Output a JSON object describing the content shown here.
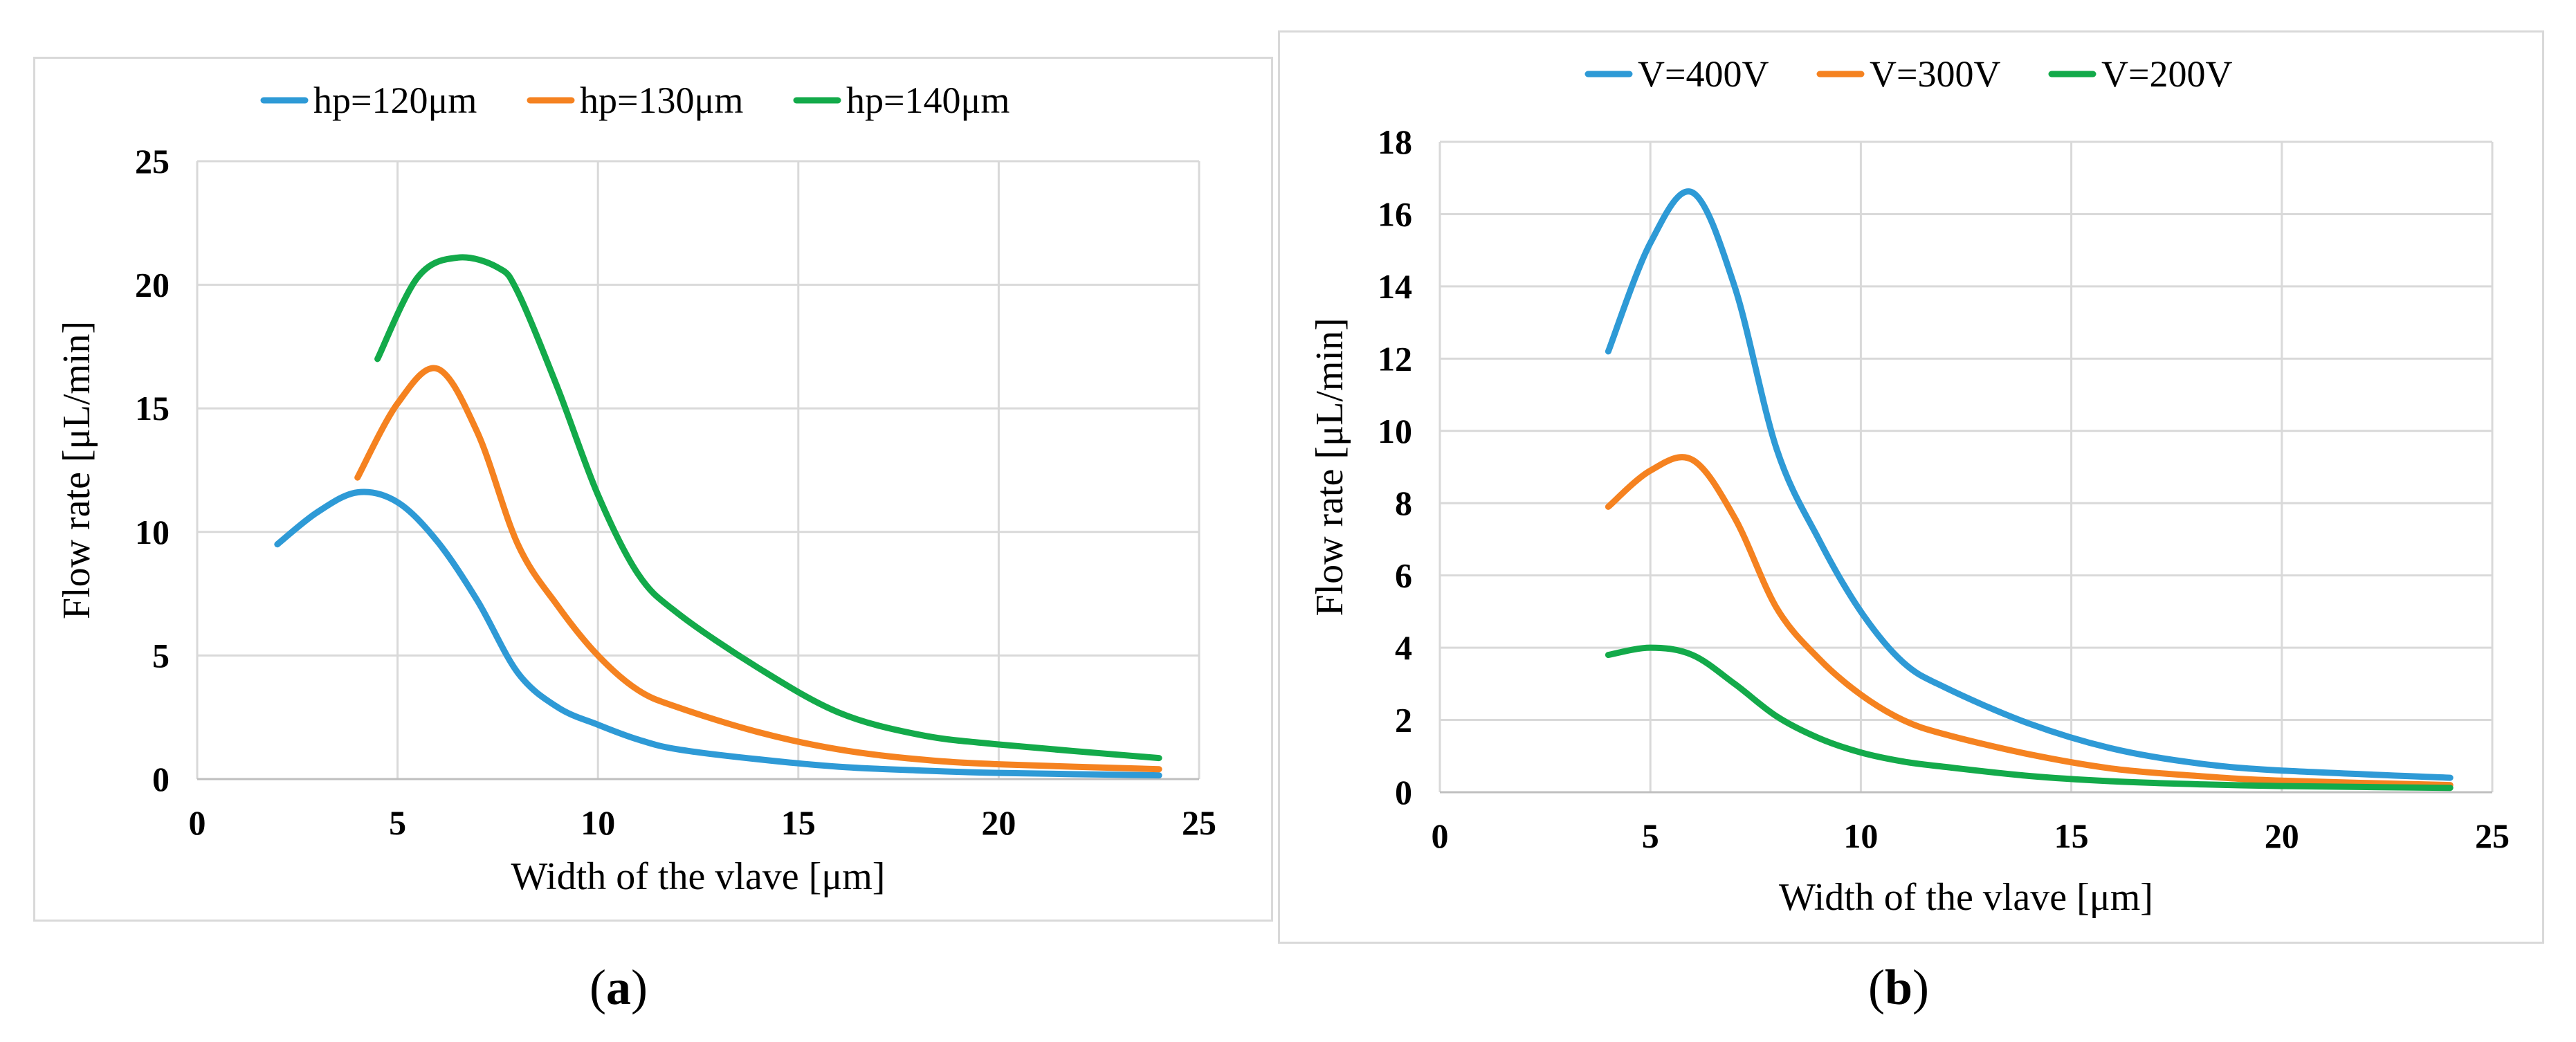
{
  "captions": {
    "a": {
      "open": "(",
      "letter": "a",
      "close": ")"
    },
    "b": {
      "open": "(",
      "letter": "b",
      "close": ")"
    }
  },
  "chart_data": [
    {
      "id": "a",
      "type": "line",
      "title": "",
      "xlabel": "Width of the vlave [μm]",
      "ylabel": "Flow rate [μL/min]",
      "xlim": [
        0,
        25
      ],
      "ylim": [
        0,
        25
      ],
      "xticks": [
        0,
        5,
        10,
        15,
        20,
        25
      ],
      "yticks": [
        0,
        5,
        10,
        15,
        20,
        25
      ],
      "grid": true,
      "legend_position": "top",
      "series": [
        {
          "name": "hp=120μm",
          "color": "#2e9ad6",
          "x": [
            2,
            3,
            4,
            5,
            6,
            7,
            8,
            9,
            10,
            11,
            12,
            14,
            16,
            18,
            20,
            24
          ],
          "y": [
            9.5,
            10.8,
            11.6,
            11.2,
            9.6,
            7.2,
            4.3,
            2.9,
            2.2,
            1.6,
            1.2,
            0.8,
            0.5,
            0.35,
            0.25,
            0.15
          ]
        },
        {
          "name": "hp=130μm",
          "color": "#f58220",
          "x": [
            4,
            5,
            6,
            7,
            8,
            9,
            10,
            11,
            12,
            14,
            16,
            18,
            20,
            24
          ],
          "y": [
            12.2,
            15.2,
            16.6,
            14,
            9.5,
            7,
            5,
            3.6,
            2.9,
            1.9,
            1.2,
            0.8,
            0.6,
            0.4
          ]
        },
        {
          "name": "hp=140μm",
          "color": "#13aa4a",
          "x": [
            4.5,
            5.5,
            6.5,
            7.5,
            8,
            9,
            10,
            11,
            12,
            14,
            16,
            18,
            20,
            24
          ],
          "y": [
            17,
            20.3,
            21.1,
            20.7,
            19.7,
            15.8,
            11.5,
            8.3,
            6.7,
            4.5,
            2.7,
            1.8,
            1.4,
            0.85
          ]
        }
      ]
    },
    {
      "id": "b",
      "type": "line",
      "title": "",
      "xlabel": "Width of the vlave [μm]",
      "ylabel": "Flow rate [μL/min]",
      "xlim": [
        0,
        25
      ],
      "ylim": [
        0,
        18
      ],
      "xticks": [
        0,
        5,
        10,
        15,
        20,
        25
      ],
      "yticks": [
        0,
        2,
        4,
        6,
        8,
        10,
        12,
        14,
        16,
        18
      ],
      "grid": true,
      "legend_position": "top",
      "series": [
        {
          "name": "V=400V",
          "color": "#2e9ad6",
          "x": [
            4,
            5,
            6,
            7,
            8,
            9,
            10,
            11,
            12,
            14,
            16,
            18,
            20,
            24
          ],
          "y": [
            12.2,
            15.2,
            16.6,
            14,
            9.5,
            7,
            5,
            3.6,
            2.9,
            1.9,
            1.2,
            0.8,
            0.6,
            0.4
          ]
        },
        {
          "name": "V=300V",
          "color": "#f58220",
          "x": [
            4,
            5,
            6,
            7,
            8,
            9,
            10,
            11,
            12,
            14,
            16,
            18,
            20,
            24
          ],
          "y": [
            7.9,
            8.9,
            9.2,
            7.6,
            5.1,
            3.7,
            2.7,
            2,
            1.6,
            1.05,
            0.65,
            0.45,
            0.32,
            0.2
          ]
        },
        {
          "name": "V=200V",
          "color": "#13aa4a",
          "x": [
            4,
            5,
            6,
            7,
            8,
            9,
            10,
            11,
            12,
            14,
            16,
            18,
            20,
            24
          ],
          "y": [
            3.8,
            4,
            3.8,
            3,
            2.1,
            1.5,
            1.1,
            0.85,
            0.7,
            0.45,
            0.3,
            0.22,
            0.17,
            0.12
          ]
        }
      ]
    }
  ]
}
